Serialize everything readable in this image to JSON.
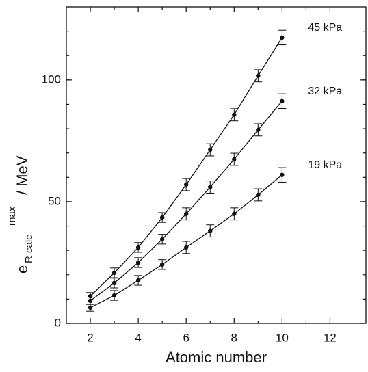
{
  "chart_data": {
    "type": "scatter",
    "x_label": "Atomic number",
    "y_label": {
      "main": "e",
      "subscript": "R calc",
      "superscript": "max",
      "unit": "/  MeV"
    },
    "x": [
      2,
      3,
      4,
      5,
      6,
      7,
      8,
      9,
      10
    ],
    "series": [
      {
        "name": "45 kPa",
        "color": "#111111",
        "values": [
          11.2,
          20.8,
          31.2,
          43.5,
          57,
          71.3,
          85.7,
          101.7,
          117.4
        ],
        "errors": [
          1.5,
          2,
          2,
          2,
          2.5,
          2.5,
          2.5,
          2.5,
          3
        ]
      },
      {
        "name": "32 kPa",
        "color": "#111111",
        "values": [
          9.3,
          16.6,
          25,
          34.6,
          45,
          56,
          67.4,
          79.5,
          91.3
        ],
        "errors": [
          1.5,
          2,
          2,
          2,
          2.5,
          2.5,
          2.5,
          2.5,
          3
        ]
      },
      {
        "name": "19 kPa",
        "color": "#111111",
        "values": [
          6.5,
          11.5,
          17.7,
          24.2,
          31.2,
          38,
          45,
          52.8,
          61
        ],
        "errors": [
          1.5,
          2,
          2,
          2,
          2.5,
          2.5,
          2.5,
          2.5,
          3
        ]
      }
    ],
    "xlim": [
      1,
      13.5
    ],
    "xticks": [
      2,
      4,
      6,
      8,
      10,
      12
    ],
    "ylim": [
      0,
      130
    ],
    "yticks": [
      0,
      50,
      100
    ]
  }
}
